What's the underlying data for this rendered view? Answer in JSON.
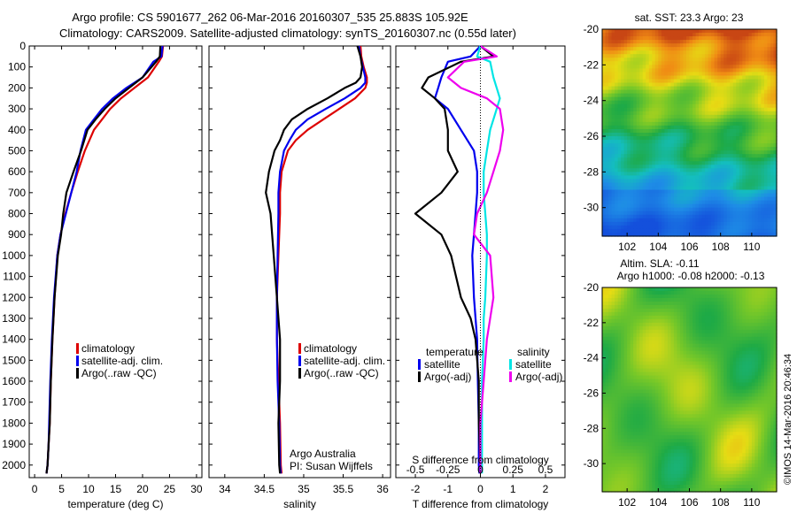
{
  "header": {
    "line1": "Argo profile: CS 5901677_262 06-Mar-2016 20160307_535 25.883S 105.92E",
    "line2": "Climatology: CARS2009. Satellite-adjusted climatology: synTS_20160307.nc (0.55d later)"
  },
  "colors": {
    "climatology": "#dd0000",
    "satellite_adj": "#0000ee",
    "argo": "#000000",
    "salinity_satellite": "#00e5e5",
    "salinity_argo": "#ee00ee"
  },
  "chart_data": [
    {
      "type": "line",
      "id": "temperature",
      "xlabel": "temperature (deg C)",
      "ylabel": "",
      "xlim": [
        -1,
        31
      ],
      "ylim": [
        2060,
        0
      ],
      "xticks": [
        0,
        5,
        10,
        15,
        20,
        25,
        30
      ],
      "yticks": [
        0,
        100,
        200,
        300,
        400,
        500,
        600,
        700,
        800,
        900,
        1000,
        1100,
        1200,
        1300,
        1400,
        1500,
        1600,
        1700,
        1800,
        1900,
        2000
      ],
      "legend": [
        "climatology",
        "satellite-adj. clim.",
        "Argo(..raw -QC)"
      ],
      "legend_placement": "lower-right",
      "series": [
        {
          "name": "climatology",
          "color": "#dd0000",
          "x": [
            23.8,
            23.6,
            23.0,
            21.0,
            18.5,
            16.0,
            14.0,
            12.5,
            11.0,
            9.3,
            8.0,
            6.8,
            5.7,
            4.8,
            4.2,
            3.7,
            3.3,
            3.0,
            2.8,
            2.6,
            2.4,
            2.2
          ],
          "y": [
            0,
            50,
            75,
            150,
            200,
            250,
            300,
            350,
            400,
            500,
            600,
            700,
            800,
            900,
            1000,
            1200,
            1400,
            1600,
            1800,
            1900,
            2000,
            2040
          ]
        },
        {
          "name": "satellite-adj. clim.",
          "color": "#0000ee",
          "x": [
            23.7,
            23.5,
            22.0,
            20.0,
            17.0,
            14.5,
            12.5,
            11.0,
            9.5,
            8.5,
            7.8,
            6.8,
            5.8,
            4.8,
            4.2,
            3.6,
            3.2,
            2.9,
            2.7,
            2.6,
            2.4,
            2.2
          ],
          "y": [
            0,
            50,
            75,
            150,
            200,
            250,
            300,
            350,
            400,
            500,
            600,
            700,
            800,
            900,
            1000,
            1200,
            1400,
            1600,
            1800,
            1900,
            2000,
            2040
          ]
        },
        {
          "name": "Argo(..raw -QC)",
          "color": "#000000",
          "x": [
            23.3,
            23.2,
            22.5,
            20.0,
            17.5,
            15.0,
            13.0,
            11.3,
            9.8,
            8.6,
            7.2,
            5.9,
            5.3,
            4.9,
            4.3,
            3.7,
            3.3,
            3.0,
            2.8,
            2.6,
            2.4,
            2.2
          ],
          "y": [
            0,
            50,
            75,
            150,
            200,
            250,
            300,
            350,
            400,
            500,
            600,
            700,
            800,
            900,
            1000,
            1200,
            1400,
            1600,
            1800,
            1900,
            2000,
            2040
          ]
        }
      ]
    },
    {
      "type": "line",
      "id": "salinity",
      "xlabel": "salinity",
      "xlim": [
        33.8,
        36.1
      ],
      "ylim": [
        2060,
        0
      ],
      "xticks": [
        34,
        34.5,
        35,
        35.5,
        36
      ],
      "legend": [
        "climatology",
        "satellite-adj. clim.",
        "Argo(..raw -QC)"
      ],
      "legend_placement": "lower-right",
      "annotation": [
        "Argo Australia",
        "PI: Susan Wijffels"
      ],
      "series": [
        {
          "name": "climatology",
          "color": "#dd0000",
          "x": [
            35.72,
            35.73,
            35.76,
            35.8,
            35.8,
            35.78,
            35.65,
            35.45,
            35.25,
            35.05,
            34.9,
            34.8,
            34.72,
            34.7,
            34.7,
            34.68,
            34.66,
            34.66,
            34.68,
            34.7,
            34.71,
            34.72
          ],
          "y": [
            0,
            50,
            100,
            150,
            175,
            200,
            250,
            300,
            350,
            400,
            450,
            500,
            600,
            700,
            800,
            1000,
            1200,
            1400,
            1600,
            1800,
            2000,
            2040
          ]
        },
        {
          "name": "satellite-adj. clim.",
          "color": "#0000ee",
          "x": [
            35.7,
            35.72,
            35.75,
            35.78,
            35.78,
            35.72,
            35.52,
            35.28,
            35.05,
            34.9,
            34.82,
            34.75,
            34.7,
            34.68,
            34.68,
            34.67,
            34.66,
            34.66,
            34.67,
            34.69,
            34.7,
            34.71
          ],
          "y": [
            0,
            50,
            100,
            150,
            175,
            200,
            250,
            300,
            350,
            400,
            450,
            500,
            600,
            700,
            800,
            1000,
            1200,
            1400,
            1600,
            1800,
            2000,
            2040
          ]
        },
        {
          "name": "Argo(..raw -QC)",
          "color": "#000000",
          "x": [
            35.68,
            35.72,
            35.74,
            35.72,
            35.66,
            35.52,
            35.3,
            35.05,
            34.85,
            34.75,
            34.7,
            34.63,
            34.56,
            34.52,
            34.58,
            34.62,
            34.66,
            34.7,
            34.7,
            34.68,
            34.69,
            34.7
          ],
          "y": [
            0,
            50,
            100,
            150,
            175,
            200,
            250,
            300,
            350,
            400,
            450,
            500,
            600,
            700,
            800,
            1000,
            1200,
            1400,
            1600,
            1800,
            2000,
            2040
          ]
        }
      ]
    },
    {
      "type": "line",
      "id": "difference",
      "xlabel": "T difference from climatology",
      "xlabel_top": "S difference from climatology",
      "xlim": [
        -2.6,
        2.6
      ],
      "ylim": [
        2060,
        0
      ],
      "xticks": [
        -2,
        -1,
        0,
        1,
        2
      ],
      "xticks_s": [
        "-0.5",
        "-0.25",
        "0",
        "0.25",
        "0.5"
      ],
      "legend_temperature": {
        "title": "temperature",
        "items": [
          "satellite",
          "Argo(-adj)"
        ]
      },
      "legend_salinity": {
        "title": "salinity",
        "items": [
          "satellite",
          "Argo(-adj)"
        ]
      },
      "series": [
        {
          "name": "temperature satellite",
          "color": "#0000ee",
          "x": [
            0.0,
            -0.3,
            -1.0,
            -1.2,
            -1.3,
            -1.4,
            -1.0,
            -0.6,
            -0.2,
            -0.1,
            -0.1,
            -0.15,
            -0.2,
            -0.25,
            -0.2,
            -0.15,
            -0.1,
            -0.08,
            -0.05,
            -0.05,
            -0.03
          ],
          "y": [
            0,
            50,
            75,
            150,
            200,
            250,
            300,
            400,
            500,
            600,
            700,
            800,
            900,
            1000,
            1200,
            1300,
            1400,
            1600,
            1800,
            2000,
            2040
          ]
        },
        {
          "name": "temperature Argo(-adj)",
          "color": "#000000",
          "x": [
            0.0,
            0.4,
            -0.6,
            -1.6,
            -1.8,
            -1.4,
            -1.1,
            -1.0,
            -1.0,
            -0.7,
            -1.2,
            -2.0,
            -1.2,
            -0.9,
            -0.6,
            -0.3,
            -0.15,
            -0.05,
            -0.05,
            0.0,
            0.0
          ],
          "y": [
            0,
            50,
            75,
            150,
            200,
            250,
            300,
            400,
            500,
            600,
            700,
            800,
            900,
            1000,
            1200,
            1300,
            1400,
            1600,
            1800,
            2000,
            2040
          ]
        },
        {
          "name": "salinity satellite",
          "color": "#00e5e5",
          "x": [
            0.0,
            -0.1,
            0.3,
            0.4,
            0.5,
            0.6,
            0.5,
            0.3,
            0.2,
            0.1,
            0.1,
            0.15,
            0.2,
            0.2,
            0.15,
            0.1,
            0.1,
            0.05,
            0.05,
            0.05,
            0.05
          ],
          "y": [
            0,
            50,
            75,
            150,
            200,
            250,
            300,
            400,
            500,
            600,
            700,
            800,
            900,
            1000,
            1200,
            1300,
            1400,
            1600,
            1800,
            2000,
            2040
          ]
        },
        {
          "name": "salinity Argo(-adj)",
          "color": "#ee00ee",
          "x": [
            0.0,
            0.5,
            -0.5,
            -1.0,
            -0.6,
            0.2,
            0.6,
            0.7,
            0.6,
            0.4,
            0.2,
            -0.1,
            -0.2,
            0.3,
            0.4,
            0.3,
            0.2,
            0.1,
            0.0,
            0.0,
            0.0
          ],
          "y": [
            0,
            50,
            75,
            150,
            200,
            250,
            300,
            400,
            500,
            600,
            700,
            800,
            900,
            1000,
            1200,
            1300,
            1400,
            1600,
            1800,
            2000,
            2040
          ]
        }
      ]
    },
    {
      "type": "heatmap",
      "id": "sst_map",
      "title": "sat. SST: 23.3 Argo: 23",
      "xlim": [
        100.4,
        111.6
      ],
      "ylim": [
        -31.6,
        -20
      ],
      "xticks": [
        102,
        104,
        106,
        108,
        110
      ],
      "yticks": [
        -20,
        -22,
        -24,
        -26,
        -28,
        -30
      ],
      "profile_location": [
        105.92,
        -25.883
      ]
    },
    {
      "type": "heatmap",
      "id": "sla_map",
      "title_line1": "Altim. SLA: -0.11",
      "title_line2": "Argo h1000: -0.08 h2000: -0.13",
      "xlim": [
        100.4,
        111.6
      ],
      "ylim": [
        -31.6,
        -20
      ],
      "xticks": [
        102,
        104,
        106,
        108,
        110
      ],
      "yticks": [
        -20,
        -22,
        -24,
        -26,
        -28,
        -30
      ]
    }
  ],
  "footer": {
    "stamp": "©IMOS 14-Mar-2016 20:46:34"
  }
}
